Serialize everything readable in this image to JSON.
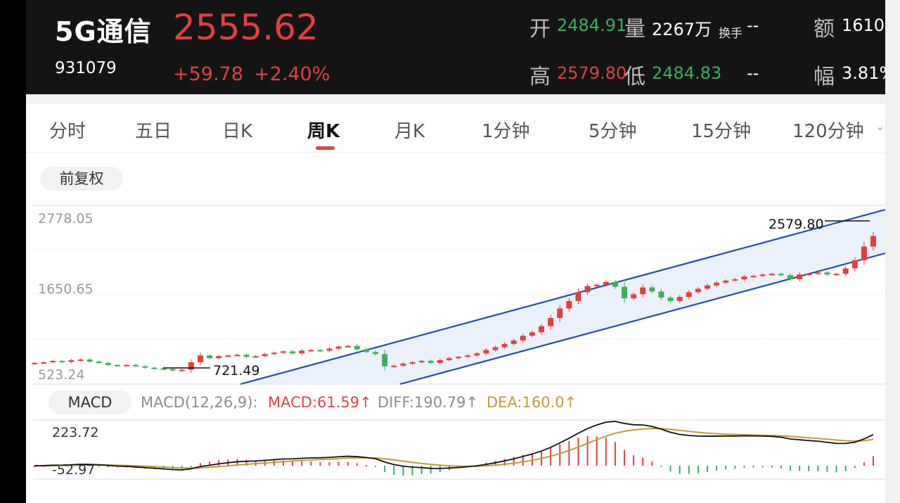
{
  "header": {
    "name": "5G通信",
    "code": "931079",
    "price": "2555.62",
    "change": "+59.78",
    "change_pct": "+2.40%",
    "open_label": "开",
    "open": "2484.91",
    "volume_label": "量",
    "volume": "2267万",
    "turnover_label": "换手",
    "turnover": "--",
    "amount_label": "额",
    "amount": "1610",
    "high_label": "高",
    "high": "2579.80",
    "low_label": "低",
    "low": "2484.83",
    "low_extra": "--",
    "amp_label": "幅",
    "amp": "3.81%"
  },
  "tabs": [
    {
      "label": "分时"
    },
    {
      "label": "五日"
    },
    {
      "label": "日K"
    },
    {
      "label": "周K"
    },
    {
      "label": "月K"
    },
    {
      "label": "1分钟"
    },
    {
      "label": "5分钟"
    },
    {
      "label": "15分钟"
    },
    {
      "label": "120分钟"
    }
  ],
  "active_tab": "周K",
  "adjust_label": "前复权",
  "colors": {
    "up": "#e04040",
    "down": "#3fae5d",
    "channel": "#1f4fa8",
    "dif": "#111111",
    "dea": "#c29a3a"
  },
  "chart_data": [
    {
      "type": "candlestick",
      "y_axis_ticks": [
        "2778.05",
        "1650.65",
        "523.24"
      ],
      "ylim": [
        523.24,
        2778.05
      ],
      "annotations": [
        {
          "label": "721.49",
          "value": 721.49
        },
        {
          "label": "2579.80",
          "value": 2579.8
        }
      ],
      "series_close": [
        690,
        700,
        720,
        705,
        730,
        740,
        710,
        690,
        660,
        650,
        660,
        640,
        620,
        610,
        600,
        580,
        590,
        700,
        800,
        760,
        790,
        800,
        810,
        780,
        790,
        820,
        840,
        860,
        830,
        870,
        880,
        870,
        900,
        930,
        940,
        890,
        850,
        820,
        640,
        650,
        680,
        700,
        720,
        690,
        730,
        760,
        780,
        800,
        830,
        880,
        920,
        970,
        1020,
        1090,
        1140,
        1230,
        1350,
        1490,
        1600,
        1730,
        1820,
        1840,
        1880,
        1810,
        1640,
        1700,
        1800,
        1740,
        1650,
        1600,
        1660,
        1730,
        1780,
        1830,
        1870,
        1900,
        1920,
        1960,
        1970,
        1990,
        2000,
        1980,
        1920,
        1990,
        2000,
        2020,
        1990,
        2000,
        2080,
        2200,
        2400,
        2555.62
      ],
      "channel": {
        "upper": [
          [
            850,
            2200
          ],
          [
            1370,
            3000
          ]
        ],
        "lower": [
          [
            1160,
            720
          ],
          [
            1640,
            3000
          ]
        ]
      }
    },
    {
      "type": "macd",
      "title": "MACD",
      "params": "MACD(12,26,9):",
      "macd_label": "MACD:61.59↑",
      "diff_label": "DIFF:190.79↑",
      "dea_label": "DEA:160.0↑",
      "y_axis_ticks": [
        "223.72",
        "-52.97"
      ],
      "ylim": [
        -52.97,
        223.72
      ]
    }
  ]
}
